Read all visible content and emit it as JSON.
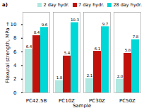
{
  "chart_data": {
    "type": "bar",
    "title": "a)",
    "xlabel": "Sample",
    "ylabel": "Flexural strength, MPa",
    "categories": [
      "PC42.5B",
      "PC10Z",
      "PC30Z",
      "PC50Z"
    ],
    "series": [
      {
        "name": "2 day hydr.",
        "color": "#aee8e0",
        "values": [
          6.4,
          1.8,
          2.1,
          2.0
        ],
        "value_labels": [
          "6.4",
          "1.8",
          "2.1",
          "2.0"
        ]
      },
      {
        "name": "7 day hydr.",
        "color": "#c0110a",
        "values": [
          8.4,
          5.4,
          6.1,
          5.8
        ],
        "value_labels": [
          "8.4",
          "5.4",
          "6.1",
          "5.8"
        ]
      },
      {
        "name": "28 day hydr.",
        "color": "#00d8d8",
        "values": [
          9.6,
          10.3,
          9.7,
          7.8
        ],
        "value_labels": [
          "9.6",
          "10.3",
          "9.7",
          "7.8"
        ]
      }
    ],
    "ylim": [
      0,
      11.8
    ],
    "yticks": [
      0,
      2,
      4,
      6,
      8,
      10
    ],
    "data_labels": true,
    "legend": "upper right"
  }
}
